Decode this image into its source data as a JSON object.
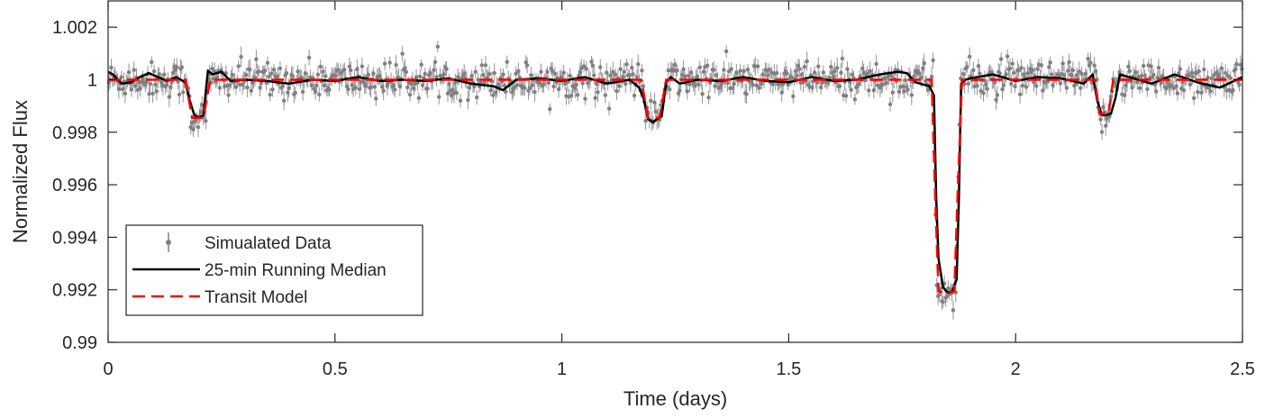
{
  "chart_data": {
    "type": "line",
    "title": "",
    "xlabel": "Time (days)",
    "ylabel": "Normalized Flux",
    "xlim": [
      0,
      2.5
    ],
    "ylim": [
      0.99,
      1.003
    ],
    "xticks": [
      0,
      0.5,
      1,
      1.5,
      2,
      2.5
    ],
    "xtick_labels": [
      "0",
      "0.5",
      "1",
      "1.5",
      "2",
      "2.5"
    ],
    "yticks": [
      0.99,
      0.992,
      0.994,
      0.996,
      0.998,
      1,
      1.002
    ],
    "ytick_labels": [
      "0.99",
      "0.992",
      "0.994",
      "0.996",
      "0.998",
      "1",
      "1.002"
    ],
    "grid": false,
    "legend_position": "bottom-left",
    "series": [
      {
        "name": "Simualated Data",
        "style": "points-with-errorbars",
        "color": "#808080",
        "baseline": 1.0,
        "noise_sigma": 0.00033,
        "error_bar": 0.0003,
        "n_points": 900
      },
      {
        "name": "25-min Running Median",
        "style": "solid",
        "color": "#000000",
        "line_width": 2.5,
        "x": [
          0,
          0.01,
          0.03,
          0.05,
          0.07,
          0.09,
          0.11,
          0.13,
          0.15,
          0.17,
          0.18,
          0.19,
          0.2,
          0.21,
          0.22,
          0.23,
          0.25,
          0.27,
          0.3,
          0.35,
          0.4,
          0.45,
          0.5,
          0.55,
          0.6,
          0.65,
          0.7,
          0.75,
          0.8,
          0.85,
          0.87,
          0.9,
          0.95,
          1.0,
          1.05,
          1.1,
          1.15,
          1.17,
          1.18,
          1.19,
          1.2,
          1.21,
          1.22,
          1.23,
          1.24,
          1.26,
          1.3,
          1.35,
          1.4,
          1.45,
          1.5,
          1.55,
          1.6,
          1.65,
          1.7,
          1.74,
          1.76,
          1.78,
          1.8,
          1.81,
          1.82,
          1.825,
          1.83,
          1.84,
          1.85,
          1.86,
          1.87,
          1.875,
          1.88,
          1.89,
          1.9,
          1.95,
          2.0,
          2.05,
          2.1,
          2.15,
          2.17,
          2.18,
          2.19,
          2.2,
          2.21,
          2.22,
          2.23,
          2.25,
          2.28,
          2.3,
          2.35,
          2.4,
          2.45,
          2.5
        ],
        "values": [
          1.0003,
          1.0002,
          0.99985,
          0.9999,
          1.0001,
          1.00025,
          1.0001,
          0.99995,
          1.0001,
          0.9999,
          0.9992,
          0.99865,
          0.99855,
          0.99865,
          1.00035,
          1.0002,
          1.0003,
          0.99995,
          1.0,
          0.99995,
          0.99985,
          1.0,
          0.99995,
          1.0001,
          0.99995,
          1.0,
          0.99995,
          1.00005,
          0.99985,
          0.99975,
          0.9996,
          1.0,
          1.00005,
          0.99995,
          1.0001,
          0.99985,
          1.0,
          0.9997,
          0.9993,
          0.9985,
          0.99838,
          0.9985,
          0.9986,
          0.9999,
          1.0001,
          0.99985,
          1.0,
          0.99995,
          1.0001,
          0.99995,
          0.9999,
          1.0001,
          0.99995,
          1.0,
          1.0002,
          1.0003,
          1.00025,
          0.9999,
          0.9998,
          0.99975,
          0.9994,
          0.9955,
          0.9932,
          0.9921,
          0.9919,
          0.99192,
          0.9924,
          0.9955,
          0.99985,
          1.0,
          1.00005,
          1.0002,
          0.99995,
          1.0001,
          1.00005,
          0.99985,
          1.0002,
          0.9992,
          0.99865,
          0.99865,
          0.9987,
          0.9993,
          1.0002,
          1.0001,
          0.99995,
          0.99985,
          1.0002,
          0.9999,
          0.9997,
          1.0001
        ]
      },
      {
        "name": "Transit Model",
        "style": "dashed",
        "color": "#ff0000",
        "line_width": 2.5,
        "x": [
          0,
          0.17,
          0.185,
          0.21,
          0.225,
          1.175,
          1.19,
          1.215,
          1.23,
          1.815,
          1.822,
          1.83,
          1.85,
          1.865,
          1.873,
          1.882,
          2.175,
          2.185,
          2.205,
          2.215,
          2.5
        ],
        "values": [
          1.0,
          1.0,
          0.99855,
          0.99855,
          1.0,
          1.0,
          0.99855,
          0.99855,
          1.0,
          1.0,
          0.996,
          0.99195,
          0.99185,
          0.99195,
          0.996,
          1.0,
          1.0,
          0.9987,
          0.9987,
          1.0,
          1.0
        ]
      }
    ],
    "transits": [
      {
        "t_start": 0.175,
        "t_end": 0.222,
        "depth": 0.00145
      },
      {
        "t_start": 1.18,
        "t_end": 1.227,
        "depth": 0.00145
      },
      {
        "t_start": 1.818,
        "t_end": 1.878,
        "depth": 0.0081
      },
      {
        "t_start": 2.178,
        "t_end": 2.212,
        "depth": 0.0013
      }
    ]
  }
}
